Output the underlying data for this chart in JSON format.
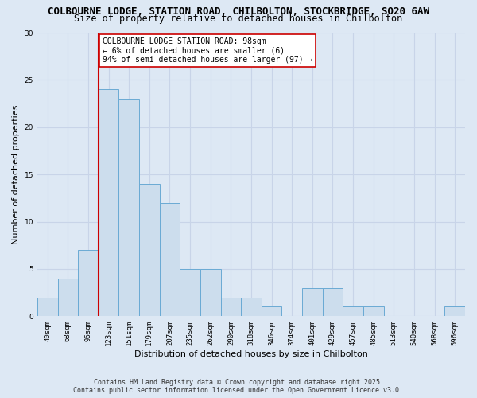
{
  "title_line1": "COLBOURNE LODGE, STATION ROAD, CHILBOLTON, STOCKBRIDGE, SO20 6AW",
  "title_line2": "Size of property relative to detached houses in Chilbolton",
  "xlabel": "Distribution of detached houses by size in Chilbolton",
  "ylabel": "Number of detached properties",
  "categories": [
    "40sqm",
    "68sqm",
    "96sqm",
    "123sqm",
    "151sqm",
    "179sqm",
    "207sqm",
    "235sqm",
    "262sqm",
    "290sqm",
    "318sqm",
    "346sqm",
    "374sqm",
    "401sqm",
    "429sqm",
    "457sqm",
    "485sqm",
    "513sqm",
    "540sqm",
    "568sqm",
    "596sqm"
  ],
  "values": [
    2,
    4,
    7,
    24,
    23,
    14,
    12,
    5,
    5,
    2,
    2,
    1,
    0,
    3,
    3,
    1,
    1,
    0,
    0,
    0,
    1
  ],
  "bar_color": "#ccdded",
  "bar_edge_color": "#6aaad4",
  "bar_width": 1.0,
  "reference_line_color": "#cc0000",
  "annotation_text": "COLBOURNE LODGE STATION ROAD: 98sqm\n← 6% of detached houses are smaller (6)\n94% of semi-detached houses are larger (97) →",
  "annotation_box_color": "#ffffff",
  "annotation_box_edge_color": "#cc0000",
  "ylim": [
    0,
    30
  ],
  "yticks": [
    0,
    5,
    10,
    15,
    20,
    25,
    30
  ],
  "grid_color": "#c8d4e8",
  "plot_bg_color": "#dde8f4",
  "fig_bg_color": "#dde8f4",
  "footer_line1": "Contains HM Land Registry data © Crown copyright and database right 2025.",
  "footer_line2": "Contains public sector information licensed under the Open Government Licence v3.0.",
  "title_fontsize": 9,
  "subtitle_fontsize": 8.5,
  "axis_label_fontsize": 8,
  "tick_fontsize": 6.5,
  "annotation_fontsize": 7,
  "footer_fontsize": 6
}
